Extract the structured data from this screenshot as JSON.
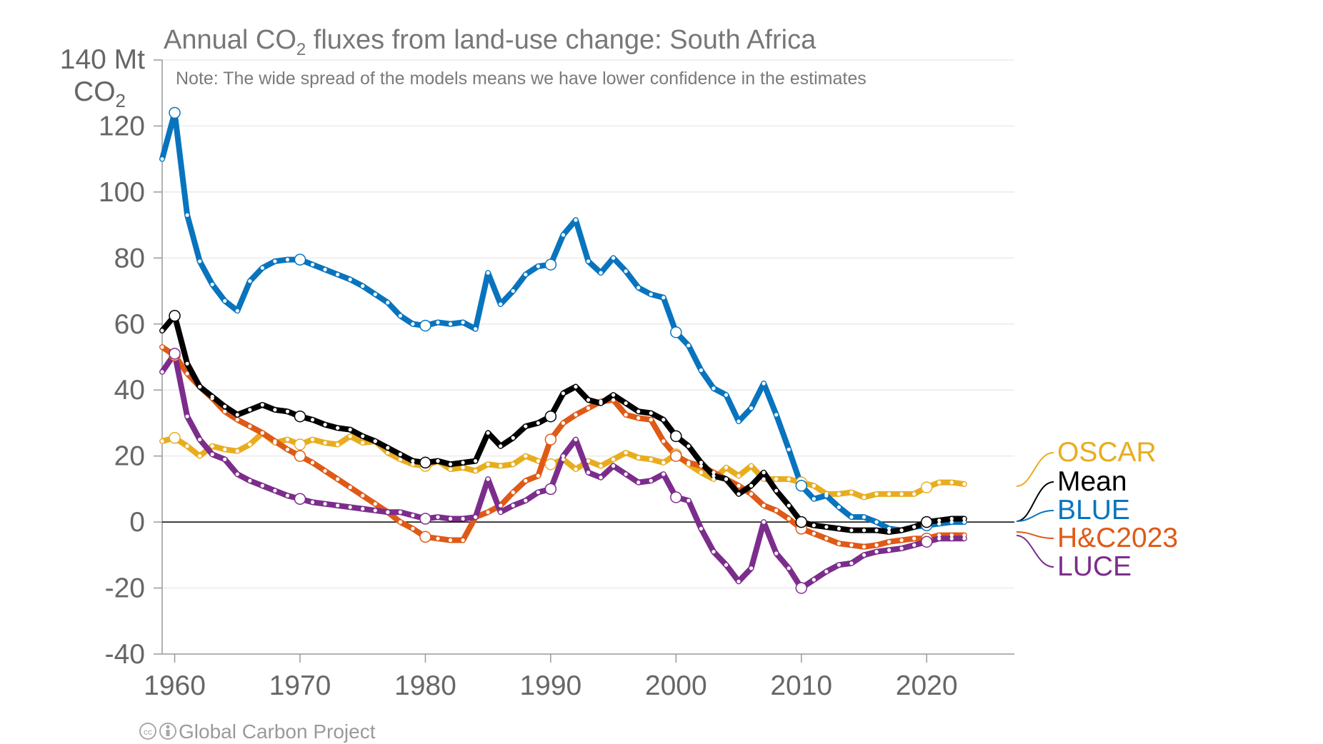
{
  "chart_data": {
    "type": "line",
    "title_main": "Annual CO",
    "title_sub": "2",
    "title_rest": " fluxes from land-use change: South Africa",
    "note": "Note: The wide spread of the models means we have lower confidence in the estimates",
    "ylabel_top": "140 Mt",
    "ylabel_unit": "CO",
    "ylabel_unit_sub": "2",
    "credit": "Global Carbon Project",
    "ylim": [
      -40,
      140
    ],
    "xlim": [
      1959,
      2027
    ],
    "y_ticks": [
      "120",
      "100",
      "80",
      "60",
      "40",
      "20",
      "0",
      "-20",
      "-40"
    ],
    "x_ticks": [
      "1960",
      "1970",
      "1980",
      "1990",
      "2000",
      "2010",
      "2020"
    ],
    "x": [
      1959,
      1960,
      1961,
      1962,
      1963,
      1964,
      1965,
      1966,
      1967,
      1968,
      1969,
      1970,
      1971,
      1972,
      1973,
      1974,
      1975,
      1976,
      1977,
      1978,
      1979,
      1980,
      1981,
      1982,
      1983,
      1984,
      1985,
      1986,
      1987,
      1988,
      1989,
      1990,
      1991,
      1992,
      1993,
      1994,
      1995,
      1996,
      1997,
      1998,
      1999,
      2000,
      2001,
      2002,
      2003,
      2004,
      2005,
      2006,
      2007,
      2008,
      2009,
      2010,
      2011,
      2012,
      2013,
      2014,
      2015,
      2016,
      2017,
      2018,
      2019,
      2020,
      2021,
      2022,
      2023
    ],
    "series": [
      {
        "name": "OSCAR",
        "color": "#e8ad1f",
        "values": [
          24.5,
          25.5,
          23,
          20,
          23,
          22,
          21.5,
          23.5,
          27,
          24,
          25,
          23.5,
          25,
          24,
          23.5,
          26,
          24,
          24.5,
          21,
          19,
          17.5,
          17,
          18.5,
          16,
          16.5,
          15.5,
          17.5,
          17,
          17.5,
          20,
          18.5,
          17.5,
          19,
          16,
          18.5,
          17,
          19,
          21,
          19.5,
          19,
          18,
          20.5,
          17.5,
          15,
          13,
          16.5,
          14,
          17,
          13,
          13,
          13,
          12,
          11,
          8.5,
          8.5,
          9,
          7.5,
          8.5,
          8.5,
          8.5,
          8.5,
          10.5,
          12,
          12,
          11.5
        ]
      },
      {
        "name": "Mean",
        "color": "#000000",
        "values": [
          58,
          62.5,
          48,
          41,
          38,
          35,
          32.5,
          34,
          35.5,
          34,
          33.5,
          32,
          31,
          29.5,
          28.5,
          28,
          26,
          24.5,
          22.5,
          20.5,
          18.5,
          18,
          18.5,
          17.5,
          18,
          18.5,
          27,
          23,
          25.5,
          29,
          30,
          32,
          39,
          41,
          37,
          36,
          38.5,
          36,
          33.5,
          33,
          31,
          26,
          23,
          18,
          14,
          13,
          8.5,
          11,
          15,
          9.5,
          5,
          0,
          -1,
          -1.5,
          -2,
          -2.5,
          -2.5,
          -2.5,
          -3,
          -2.5,
          -1.5,
          0,
          0.5,
          1,
          1
        ]
      },
      {
        "name": "BLUE",
        "color": "#0874be",
        "values": [
          110,
          124,
          93,
          79,
          72,
          67,
          64,
          73,
          77,
          79,
          79.5,
          79.5,
          78,
          76.5,
          75,
          73.5,
          71.5,
          69,
          66.5,
          62.5,
          60,
          59.5,
          60.5,
          60,
          60.5,
          58.5,
          75.5,
          66,
          70,
          75,
          77.5,
          78,
          87,
          91.5,
          79,
          75.5,
          80,
          76,
          71,
          69,
          68,
          57.5,
          53.5,
          46,
          40.5,
          38.5,
          30.5,
          34.5,
          42,
          32.5,
          22,
          11,
          7,
          8,
          4.5,
          1.5,
          1.5,
          0,
          -2,
          -2.5,
          -1.5,
          -1,
          -0.5,
          0,
          0
        ]
      },
      {
        "name": "H&C2023",
        "color": "#df5a16",
        "values": [
          53,
          50.5,
          45,
          41,
          37.5,
          33.5,
          31,
          29,
          27,
          24.5,
          22,
          20,
          18,
          15.5,
          13,
          10.5,
          8,
          5.5,
          3,
          0,
          -2,
          -4.5,
          -5,
          -5.5,
          -5.5,
          1.5,
          3,
          5,
          9,
          12.5,
          14,
          25,
          30,
          32.5,
          34.5,
          36.5,
          37,
          32.5,
          31.5,
          31,
          24.5,
          20,
          18,
          17,
          15,
          13,
          11,
          8.5,
          5,
          3.5,
          1,
          -2,
          -3.5,
          -5,
          -6.5,
          -7,
          -7.5,
          -7,
          -6,
          -5.5,
          -5,
          -5,
          -4,
          -4,
          -4
        ]
      },
      {
        "name": "LUCE",
        "color": "#7c2d8c",
        "values": [
          45.5,
          51,
          32,
          25,
          20.5,
          19,
          14.5,
          12.5,
          11,
          9.5,
          8,
          7,
          6,
          5.5,
          5,
          4.5,
          4,
          3.5,
          3,
          3,
          2,
          1,
          1.5,
          1,
          1,
          1.5,
          13,
          3,
          5,
          6.5,
          9,
          10,
          20,
          25,
          15,
          13.5,
          17,
          14.5,
          12,
          12.5,
          14.5,
          7.5,
          6.5,
          -2,
          -9,
          -13,
          -18,
          -14,
          0,
          -9.5,
          -14,
          -20,
          -17.5,
          -15,
          -13,
          -12.5,
          -10,
          -9,
          -8.5,
          -8,
          -7,
          -6,
          -5,
          -5,
          -5
        ]
      }
    ],
    "highlight_years": [
      1960,
      1970,
      1980,
      1990,
      2000,
      2010,
      2020
    ],
    "legend": [
      {
        "label": "OSCAR",
        "color": "#e8ad1f"
      },
      {
        "label": "Mean",
        "color": "#000000"
      },
      {
        "label": "BLUE",
        "color": "#0874be"
      },
      {
        "label": "H&C2023",
        "color": "#df5a16"
      },
      {
        "label": "LUCE",
        "color": "#7c2d8c"
      }
    ],
    "legend_placement": "right",
    "grid": true
  }
}
